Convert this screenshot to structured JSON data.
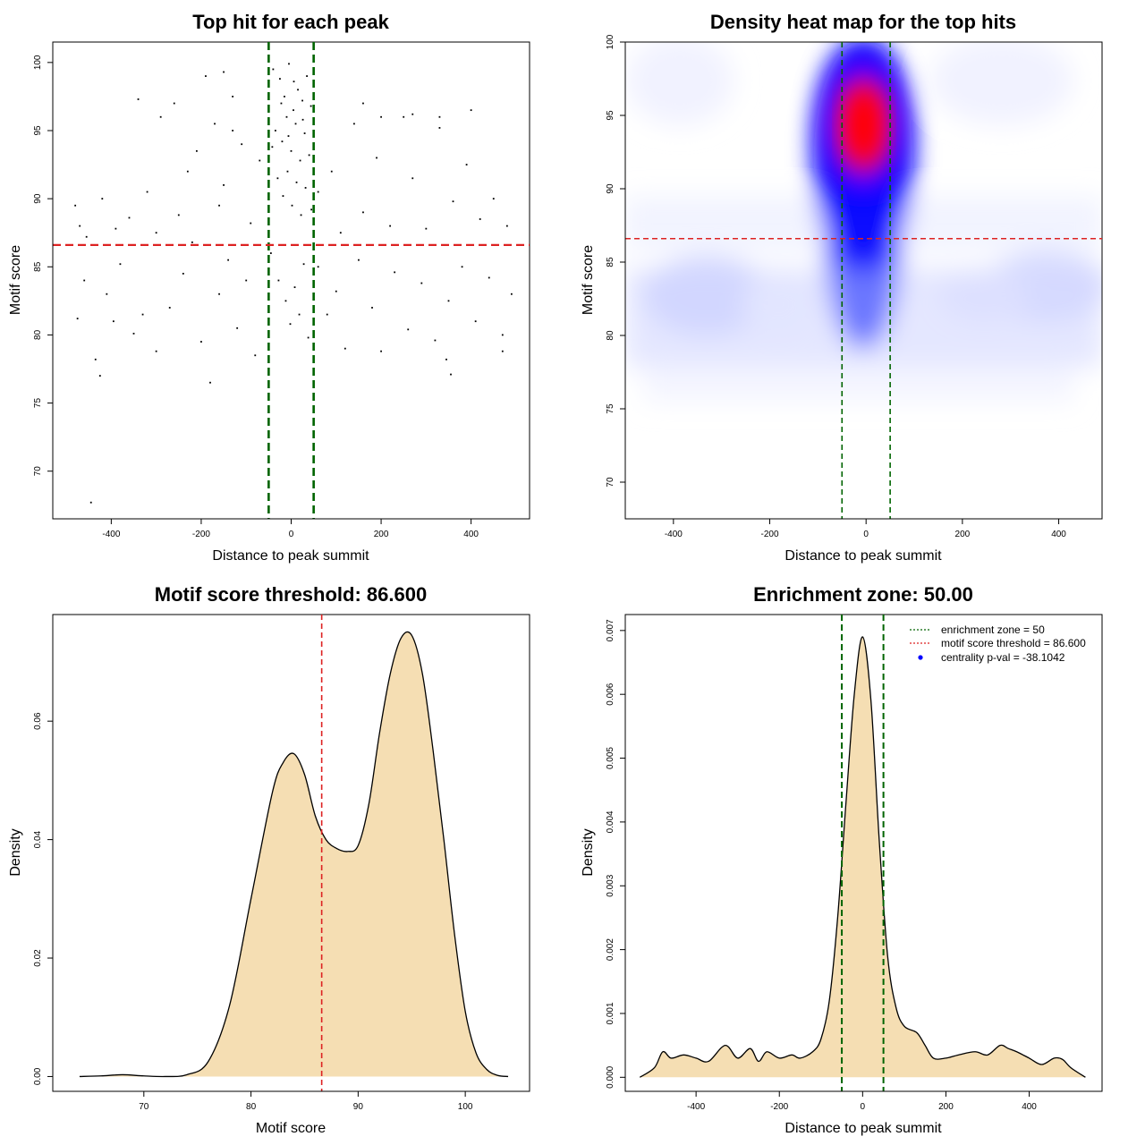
{
  "chart_data": [
    {
      "type": "scatter",
      "title": "Top hit for each peak",
      "xlabel": "Distance to peak summit",
      "ylabel": "Motif score",
      "xlim": [
        -530,
        530
      ],
      "ylim": [
        66.5,
        101.5
      ],
      "xticks": [
        -400,
        -200,
        0,
        200,
        400
      ],
      "yticks": [
        70,
        75,
        80,
        85,
        90,
        95,
        100
      ],
      "vlines": [
        -50,
        50
      ],
      "hline": 86.6,
      "point_color": "#000000",
      "vline_color": "#006400",
      "hline_color": "#dd2222",
      "points": [
        [
          -445,
          67.7
        ],
        [
          -435,
          78.2
        ],
        [
          -425,
          77.0
        ],
        [
          -475,
          81.2
        ],
        [
          -460,
          84.0
        ],
        [
          -410,
          83.0
        ],
        [
          -395,
          81.0
        ],
        [
          -380,
          85.2
        ],
        [
          -350,
          80.1
        ],
        [
          -330,
          81.5
        ],
        [
          -300,
          78.8
        ],
        [
          -270,
          82.0
        ],
        [
          -240,
          84.5
        ],
        [
          -200,
          79.5
        ],
        [
          -180,
          76.5
        ],
        [
          -160,
          83.0
        ],
        [
          -140,
          85.5
        ],
        [
          -120,
          80.5
        ],
        [
          -100,
          84.0
        ],
        [
          -80,
          78.5
        ],
        [
          -480,
          89.5
        ],
        [
          -470,
          88.0
        ],
        [
          -455,
          87.2
        ],
        [
          -420,
          90.0
        ],
        [
          -390,
          87.8
        ],
        [
          -360,
          88.6
        ],
        [
          -320,
          90.5
        ],
        [
          -290,
          96.0
        ],
        [
          -260,
          97.0
        ],
        [
          -230,
          92.0
        ],
        [
          -210,
          93.5
        ],
        [
          -190,
          99.0
        ],
        [
          -170,
          95.5
        ],
        [
          -150,
          91.0
        ],
        [
          -130,
          97.5
        ],
        [
          -110,
          94.0
        ],
        [
          -90,
          88.2
        ],
        [
          -70,
          92.8
        ],
        [
          -300,
          87.5
        ],
        [
          -250,
          88.8
        ],
        [
          -220,
          86.8
        ],
        [
          -160,
          89.5
        ],
        [
          -340,
          97.3
        ],
        [
          -150,
          99.3
        ],
        [
          -130,
          95.0
        ],
        [
          60,
          85.0
        ],
        [
          80,
          81.5
        ],
        [
          100,
          83.2
        ],
        [
          120,
          79.0
        ],
        [
          150,
          85.5
        ],
        [
          180,
          82.0
        ],
        [
          200,
          78.8
        ],
        [
          230,
          84.6
        ],
        [
          260,
          80.4
        ],
        [
          290,
          83.8
        ],
        [
          320,
          79.6
        ],
        [
          350,
          82.5
        ],
        [
          380,
          85.0
        ],
        [
          410,
          81.0
        ],
        [
          440,
          84.2
        ],
        [
          470,
          80.0
        ],
        [
          490,
          83.0
        ],
        [
          355,
          77.1
        ],
        [
          345,
          78.2
        ],
        [
          470,
          78.8
        ],
        [
          60,
          90.5
        ],
        [
          90,
          92.0
        ],
        [
          110,
          87.5
        ],
        [
          140,
          95.5
        ],
        [
          160,
          89.0
        ],
        [
          190,
          93.0
        ],
        [
          220,
          88.0
        ],
        [
          250,
          96.0
        ],
        [
          270,
          91.5
        ],
        [
          300,
          87.8
        ],
        [
          330,
          95.2
        ],
        [
          360,
          89.8
        ],
        [
          390,
          92.5
        ],
        [
          420,
          88.5
        ],
        [
          450,
          90.0
        ],
        [
          480,
          88.0
        ],
        [
          160,
          97.0
        ],
        [
          200,
          96.0
        ],
        [
          270,
          96.2
        ],
        [
          330,
          96.0
        ],
        [
          400,
          96.5
        ],
        [
          -40,
          99.5
        ],
        [
          -25,
          98.8
        ],
        [
          -15,
          97.5
        ],
        [
          -5,
          99.9
        ],
        [
          5,
          96.5
        ],
        [
          15,
          98.0
        ],
        [
          25,
          97.2
        ],
        [
          35,
          99.0
        ],
        [
          -35,
          95.0
        ],
        [
          -20,
          94.2
        ],
        [
          -10,
          96.0
        ],
        [
          0,
          93.5
        ],
        [
          10,
          95.5
        ],
        [
          20,
          92.8
        ],
        [
          30,
          94.8
        ],
        [
          40,
          93.2
        ],
        [
          -30,
          91.5
        ],
        [
          -18,
          90.2
        ],
        [
          -8,
          92.0
        ],
        [
          2,
          89.5
        ],
        [
          12,
          91.2
        ],
        [
          22,
          88.8
        ],
        [
          32,
          90.8
        ],
        [
          45,
          89.2
        ],
        [
          -45,
          86.0
        ],
        [
          -28,
          84.0
        ],
        [
          -12,
          82.5
        ],
        [
          -2,
          80.8
        ],
        [
          8,
          83.5
        ],
        [
          18,
          81.5
        ],
        [
          28,
          85.2
        ],
        [
          38,
          79.8
        ],
        [
          -42,
          93.8
        ],
        [
          -22,
          97.0
        ],
        [
          -6,
          94.6
        ],
        [
          6,
          98.6
        ],
        [
          26,
          95.8
        ],
        [
          44,
          96.8
        ]
      ]
    },
    {
      "type": "heatmap",
      "title": "Density heat map for the top hits",
      "xlabel": "Distance to peak summit",
      "ylabel": "Motif score",
      "xlim": [
        -500,
        490
      ],
      "ylim": [
        67.5,
        100
      ],
      "xticks": [
        -400,
        -200,
        0,
        200,
        400
      ],
      "yticks": [
        70,
        75,
        80,
        85,
        90,
        95,
        100
      ],
      "vlines": [
        -50,
        50
      ],
      "hline": 86.6,
      "vline_color": "#006400",
      "hline_color": "#dd2222",
      "peak_center": [
        0,
        94.5
      ],
      "colors": [
        "#ffffff",
        "#0000ff",
        "#ff0000"
      ]
    },
    {
      "type": "area",
      "title": "Motif score threshold: 86.600",
      "xlabel": "Motif score",
      "ylabel": "Density",
      "xlim": [
        61.5,
        106
      ],
      "ylim": [
        -0.0025,
        0.078
      ],
      "xticks": [
        70,
        80,
        90,
        100
      ],
      "yticks": [
        0.0,
        0.02,
        0.04,
        0.06
      ],
      "ytick_labels": [
        "0.00",
        "0.02",
        "0.04",
        "0.06"
      ],
      "vline": 86.6,
      "vline_color": "#dd2222",
      "fill": "#f5deb3",
      "x": [
        64,
        66,
        68,
        70,
        72,
        74,
        76,
        78,
        80,
        82,
        83,
        84,
        85,
        86,
        87,
        88,
        89,
        90,
        91,
        92,
        93,
        94,
        95,
        96,
        97,
        98,
        99,
        100,
        101,
        102,
        103,
        104
      ],
      "y": [
        0.0,
        0.0001,
        0.0003,
        0.0001,
        0.0,
        0.0003,
        0.0025,
        0.012,
        0.03,
        0.048,
        0.053,
        0.0545,
        0.051,
        0.044,
        0.04,
        0.0385,
        0.038,
        0.039,
        0.046,
        0.058,
        0.068,
        0.074,
        0.0745,
        0.068,
        0.055,
        0.04,
        0.024,
        0.011,
        0.004,
        0.0012,
        0.0002,
        0.0
      ]
    },
    {
      "type": "area",
      "title": "Enrichment zone: 50.00",
      "xlabel": "Distance to peak summit",
      "ylabel": "Density",
      "xlim": [
        -570,
        575
      ],
      "ylim": [
        -0.00022,
        0.00725
      ],
      "xticks": [
        -400,
        -200,
        0,
        200,
        400
      ],
      "yticks": [
        0.0,
        0.001,
        0.002,
        0.003,
        0.004,
        0.005,
        0.006,
        0.007
      ],
      "ytick_labels": [
        "0.000",
        "0.001",
        "0.002",
        "0.003",
        "0.004",
        "0.005",
        "0.006",
        "0.007"
      ],
      "vlines": [
        -50,
        50
      ],
      "vline_color": "#006400",
      "fill": "#f5deb3",
      "x": [
        -535,
        -500,
        -480,
        -460,
        -430,
        -400,
        -370,
        -330,
        -300,
        -270,
        -250,
        -230,
        -200,
        -170,
        -150,
        -120,
        -100,
        -80,
        -60,
        -40,
        -20,
        0,
        20,
        40,
        60,
        80,
        100,
        130,
        150,
        170,
        200,
        230,
        270,
        300,
        330,
        350,
        370,
        400,
        430,
        460,
        480,
        500,
        535
      ],
      "y": [
        0.0,
        0.00015,
        0.0004,
        0.0003,
        0.00035,
        0.0003,
        0.00025,
        0.0005,
        0.0003,
        0.00045,
        0.00025,
        0.0004,
        0.0003,
        0.00035,
        0.0003,
        0.0004,
        0.0006,
        0.0012,
        0.0025,
        0.0043,
        0.006,
        0.0069,
        0.0059,
        0.0037,
        0.0019,
        0.0011,
        0.0008,
        0.0007,
        0.0005,
        0.0003,
        0.0003,
        0.00035,
        0.0004,
        0.00035,
        0.0005,
        0.00045,
        0.0004,
        0.0003,
        0.0002,
        0.0003,
        0.00028,
        0.00015,
        0.0
      ]
    }
  ],
  "legend": {
    "items": [
      {
        "label": "enrichment zone = 50",
        "color": "#006400",
        "kind": "dotted-line"
      },
      {
        "label": "motif score threshold = 86.600",
        "color": "#dd2222",
        "kind": "dotted-line"
      },
      {
        "label": "centrality p-val = -38.1042",
        "color": "#0000ff",
        "kind": "point"
      }
    ]
  }
}
